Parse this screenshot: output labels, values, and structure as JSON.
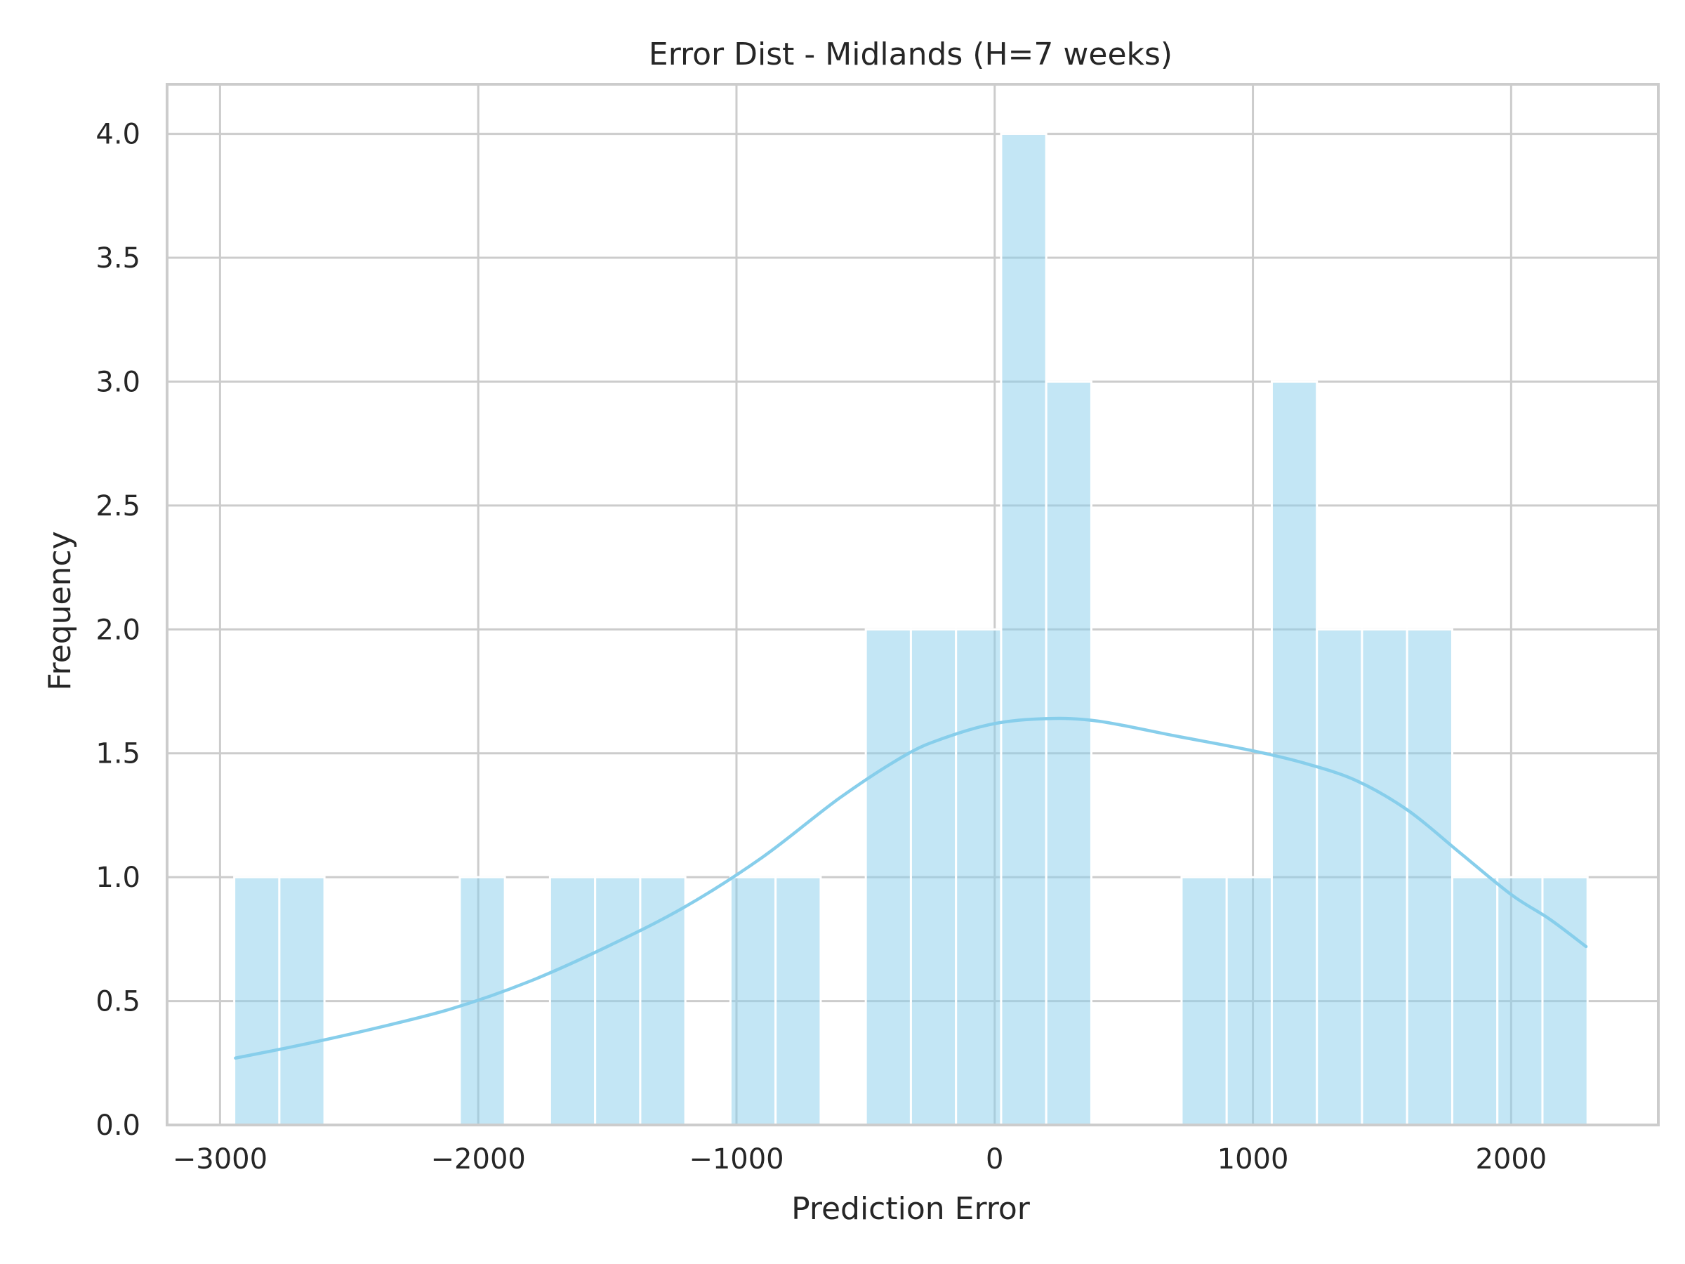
{
  "chart_data": {
    "type": "bar",
    "title": "Error Dist - Midlands (H=7 weeks)",
    "xlabel": "Prediction Error",
    "ylabel": "Frequency",
    "xlim": [
      -3205,
      2570
    ],
    "ylim": [
      0,
      4.2
    ],
    "grid": true,
    "x_ticks": [
      {
        "value": -3000,
        "label": "−3000"
      },
      {
        "value": -2000,
        "label": "−2000"
      },
      {
        "value": -1000,
        "label": "−1000"
      },
      {
        "value": 0,
        "label": "0"
      },
      {
        "value": 1000,
        "label": "1000"
      },
      {
        "value": 2000,
        "label": "2000"
      }
    ],
    "y_ticks": [
      {
        "value": 0.0,
        "label": "0.0"
      },
      {
        "value": 0.5,
        "label": "0.5"
      },
      {
        "value": 1.0,
        "label": "1.0"
      },
      {
        "value": 1.5,
        "label": "1.5"
      },
      {
        "value": 2.0,
        "label": "2.0"
      },
      {
        "value": 2.5,
        "label": "2.5"
      },
      {
        "value": 3.0,
        "label": "3.0"
      },
      {
        "value": 3.5,
        "label": "3.5"
      },
      {
        "value": 4.0,
        "label": "4.0"
      }
    ],
    "bin_start": -2945,
    "bin_width": 174.7,
    "counts": [
      1,
      1,
      0,
      0,
      0,
      1,
      0,
      1,
      1,
      1,
      0,
      1,
      1,
      0,
      2,
      2,
      2,
      4,
      3,
      0,
      0,
      1,
      1,
      3,
      2,
      2,
      2,
      1,
      1,
      1
    ],
    "kde": {
      "x": [
        -2940,
        -2700,
        -2400,
        -2100,
        -1800,
        -1500,
        -1200,
        -900,
        -600,
        -350,
        -200,
        0,
        200,
        400,
        700,
        1000,
        1200,
        1400,
        1600,
        1800,
        2000,
        2150,
        2290
      ],
      "y": [
        0.27,
        0.32,
        0.39,
        0.47,
        0.58,
        0.72,
        0.88,
        1.08,
        1.32,
        1.49,
        1.56,
        1.62,
        1.64,
        1.63,
        1.57,
        1.51,
        1.46,
        1.39,
        1.27,
        1.1,
        0.93,
        0.83,
        0.72
      ]
    },
    "colors": {
      "bar": "#87ceeb",
      "kde": "#87ceeb",
      "grid": "#cccccc",
      "text": "#262626"
    }
  }
}
